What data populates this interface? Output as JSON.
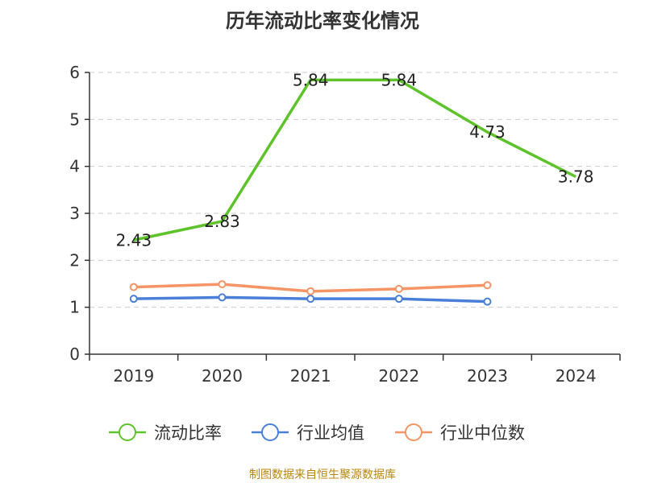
{
  "chart_data": {
    "type": "line",
    "title": "历年流动比率变化情况",
    "source": "制图数据来自恒生聚源数据库",
    "categories": [
      "2019",
      "2020",
      "2021",
      "2022",
      "2023",
      "2024"
    ],
    "yticks": [
      "0",
      "1",
      "2",
      "3",
      "4",
      "5",
      "6"
    ],
    "ylim": [
      0,
      6
    ],
    "grid": true,
    "legend_position": "bottom",
    "series": [
      {
        "name": "流动比率",
        "color": "#5ec32b",
        "values": [
          2.43,
          2.83,
          5.84,
          5.84,
          4.73,
          3.78
        ],
        "labels": [
          "2.43",
          "2.83",
          "5.84",
          "5.84",
          "4.73",
          "3.78"
        ]
      },
      {
        "name": "行业均值",
        "color": "#4a7fd8",
        "values": [
          1.18,
          1.21,
          1.18,
          1.18,
          1.12,
          null
        ]
      },
      {
        "name": "行业中位数",
        "color": "#f59464",
        "values": [
          1.43,
          1.49,
          1.34,
          1.39,
          1.47,
          null
        ]
      }
    ]
  }
}
